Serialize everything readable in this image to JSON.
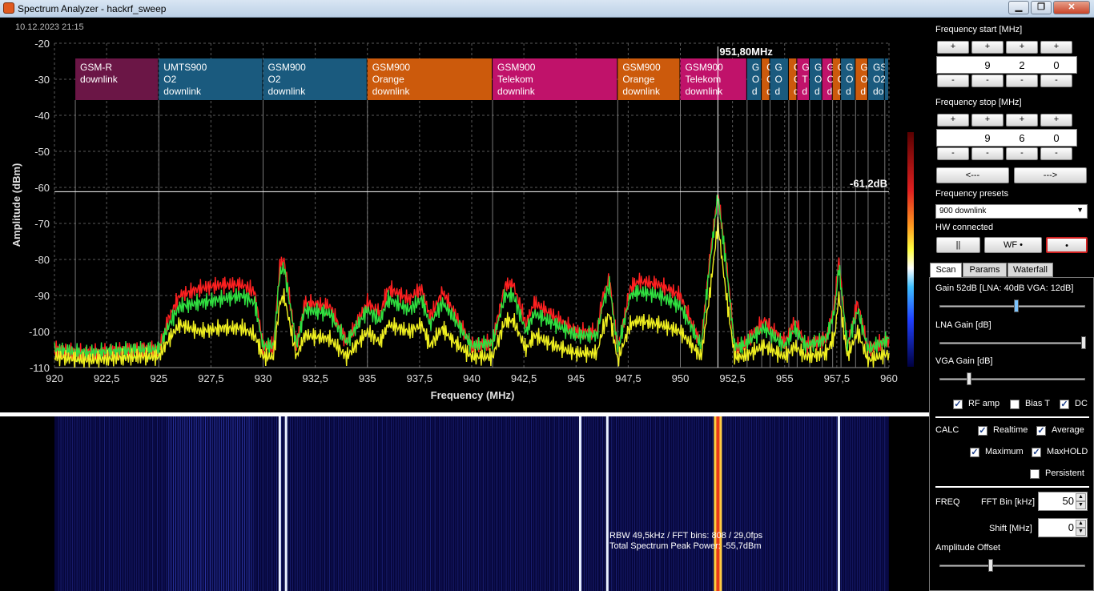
{
  "window": {
    "title": "Spectrum Analyzer - hackrf_sweep",
    "minimize": "▁",
    "maximize": "❐",
    "close": "✕"
  },
  "spectrum": {
    "timestamp": "10.12.2023 21:15",
    "marker_label": "951,80MHz",
    "marker_freq": 951.8,
    "peak_label": "-61,2dB",
    "peak_db": -61.2
  },
  "chart_data": {
    "type": "line",
    "xlabel": "Frequency (MHz)",
    "ylabel": "Amplitude (dBm)",
    "xlim": [
      920,
      960
    ],
    "ylim": [
      -110,
      -20
    ],
    "x_ticks": [
      "920",
      "922,5",
      "925",
      "927,5",
      "930",
      "932,5",
      "935",
      "937,5",
      "940",
      "942,5",
      "945",
      "947,5",
      "950",
      "952,5",
      "955",
      "957,5",
      "960"
    ],
    "y_ticks": [
      "-20",
      "-30",
      "-40",
      "-50",
      "-60",
      "-70",
      "-80",
      "-90",
      "-100",
      "-110"
    ],
    "grid": true,
    "series": [
      {
        "color": "#ff2020",
        "x": [
          920,
          921.5,
          924,
          925,
          925.5,
          926,
          927,
          928,
          929,
          929.6,
          930,
          930.5,
          930.8,
          931,
          931.6,
          932,
          933.2,
          934,
          935,
          935.6,
          936,
          937,
          937.6,
          938,
          938.6,
          939,
          940,
          941,
          941.6,
          942,
          942.6,
          943,
          944,
          945,
          946,
          946.3,
          946.6,
          947,
          947.6,
          948,
          949,
          950,
          951,
          951.4,
          951.8,
          952.2,
          952.6,
          953,
          954,
          955,
          955.5,
          956,
          957,
          957.4,
          957.6,
          958,
          958.5,
          959,
          960
        ],
        "y": [
          -105,
          -106,
          -105,
          -105,
          -96,
          -90,
          -88,
          -87,
          -87,
          -89,
          -104,
          -104,
          -82,
          -80,
          -104,
          -92,
          -93,
          -103,
          -92,
          -95,
          -88,
          -91,
          -88,
          -96,
          -89,
          -93,
          -104,
          -103,
          -87,
          -87,
          -98,
          -92,
          -96,
          -100,
          -100,
          -90,
          -85,
          -105,
          -88,
          -86,
          -87,
          -90,
          -104,
          -80,
          -62,
          -80,
          -104,
          -104,
          -97,
          -103,
          -97,
          -104,
          -102,
          -92,
          -80,
          -104,
          -92,
          -105,
          -102
        ]
      },
      {
        "color": "#30e040",
        "x": [
          920,
          921.5,
          924,
          925,
          925.5,
          926,
          927,
          928,
          929,
          929.6,
          930,
          930.5,
          930.8,
          931,
          931.6,
          932,
          933.2,
          934,
          935,
          935.6,
          936,
          937,
          937.6,
          938,
          938.6,
          939,
          940,
          941,
          941.6,
          942,
          942.6,
          943,
          944,
          945,
          946,
          946.3,
          946.6,
          947,
          947.6,
          948,
          949,
          950,
          951,
          951.4,
          951.8,
          952.2,
          952.6,
          953,
          954,
          955,
          955.5,
          956,
          957,
          957.4,
          957.6,
          958,
          958.5,
          959,
          960
        ],
        "y": [
          -105,
          -106,
          -105,
          -105,
          -98,
          -93,
          -92,
          -91,
          -90,
          -92,
          -104,
          -104,
          -84,
          -82,
          -104,
          -94,
          -95,
          -103,
          -94,
          -97,
          -91,
          -94,
          -91,
          -98,
          -92,
          -95,
          -104,
          -103,
          -90,
          -90,
          -100,
          -95,
          -98,
          -101,
          -101,
          -92,
          -87,
          -105,
          -90,
          -89,
          -90,
          -93,
          -104,
          -82,
          -62,
          -82,
          -104,
          -104,
          -99,
          -104,
          -99,
          -104,
          -102,
          -94,
          -82,
          -104,
          -94,
          -105,
          -102
        ]
      },
      {
        "color": "#f0f020",
        "x": [
          920,
          921.5,
          924,
          925,
          925.5,
          926,
          927,
          928,
          929,
          929.6,
          930,
          930.5,
          930.8,
          931,
          931.6,
          932,
          933.2,
          934,
          935,
          935.6,
          936,
          937,
          937.6,
          938,
          938.6,
          939,
          940,
          941,
          941.6,
          942,
          942.6,
          943,
          944,
          945,
          946,
          946.3,
          946.6,
          947,
          947.6,
          948,
          949,
          950,
          951,
          951.4,
          951.8,
          952.2,
          952.6,
          953,
          954,
          955,
          955.5,
          956,
          957,
          957.4,
          957.6,
          958,
          958.5,
          959,
          960
        ],
        "y": [
          -107,
          -108,
          -107,
          -107,
          -102,
          -98,
          -100,
          -99,
          -99,
          -101,
          -107,
          -107,
          -92,
          -90,
          -107,
          -101,
          -102,
          -107,
          -100,
          -103,
          -98,
          -100,
          -98,
          -104,
          -99,
          -102,
          -107,
          -107,
          -97,
          -97,
          -105,
          -101,
          -104,
          -106,
          -106,
          -99,
          -95,
          -108,
          -98,
          -97,
          -98,
          -100,
          -107,
          -90,
          -70,
          -90,
          -107,
          -107,
          -104,
          -107,
          -104,
          -107,
          -106,
          -101,
          -90,
          -107,
          -100,
          -108,
          -106
        ]
      }
    ],
    "bands": [
      {
        "label": [
          "GSM-R",
          "downlink"
        ],
        "start": 921,
        "end": 925,
        "color": "#6b1646"
      },
      {
        "label": [
          "UMTS900",
          "O2",
          "downlink"
        ],
        "start": 925,
        "end": 930,
        "color": "#1a5a7e"
      },
      {
        "label": [
          "GSM900",
          "O2",
          "downlink"
        ],
        "start": 930,
        "end": 935,
        "color": "#1a5a7e"
      },
      {
        "label": [
          "GSM900",
          "Orange",
          "downlink"
        ],
        "start": 935,
        "end": 941,
        "color": "#cc5a0c"
      },
      {
        "label": [
          "GSM900",
          "Telekom",
          "downlink"
        ],
        "start": 941,
        "end": 947,
        "color": "#c0126a"
      },
      {
        "label": [
          "GSM900",
          "Orange",
          "downlink"
        ],
        "start": 947,
        "end": 950,
        "color": "#cc5a0c"
      },
      {
        "label": [
          "GSM900",
          "Telekom",
          "downlink"
        ],
        "start": 950,
        "end": 953.2,
        "color": "#c0126a"
      },
      {
        "label": [
          "G",
          "O",
          "d"
        ],
        "start": 953.2,
        "end": 953.9,
        "color": "#1a5a7e"
      },
      {
        "label": [
          "G",
          "O",
          "d"
        ],
        "start": 953.9,
        "end": 954.3,
        "color": "#cc5a0c"
      },
      {
        "label": [
          "G",
          "O",
          "d"
        ],
        "start": 954.3,
        "end": 955.2,
        "color": "#1a5a7e"
      },
      {
        "label": [
          "G",
          "O",
          "d"
        ],
        "start": 955.2,
        "end": 955.6,
        "color": "#cc5a0c"
      },
      {
        "label": [
          "G",
          "T",
          "d"
        ],
        "start": 955.6,
        "end": 956.2,
        "color": "#c0126a"
      },
      {
        "label": [
          "G",
          "O",
          "d"
        ],
        "start": 956.2,
        "end": 956.8,
        "color": "#1a5a7e"
      },
      {
        "label": [
          "G",
          "O",
          "d"
        ],
        "start": 956.8,
        "end": 957.3,
        "color": "#c0126a"
      },
      {
        "label": [
          "G",
          "O",
          "d"
        ],
        "start": 957.3,
        "end": 957.7,
        "color": "#cc5a0c"
      },
      {
        "label": [
          "G",
          "O",
          "d"
        ],
        "start": 957.7,
        "end": 958.4,
        "color": "#1a5a7e"
      },
      {
        "label": [
          "G",
          "O",
          "d"
        ],
        "start": 958.4,
        "end": 959,
        "color": "#cc5a0c"
      },
      {
        "label": [
          "GS",
          "O2",
          "do"
        ],
        "start": 959,
        "end": 959.8,
        "color": "#1a5a7e"
      },
      {
        "label": [
          "",
          "",
          ""
        ],
        "start": 959.8,
        "end": 960,
        "color": "#1a5a7e"
      }
    ]
  },
  "waterfall": {
    "info_line1": "RBW 49,5kHz / FFT bins: 808 / 29,0fps",
    "info_line2": "Total Spectrum Peak Power: -55,7dBm",
    "bright_lines_mhz": [
      930.8,
      931.1,
      945.2,
      946.5,
      951.8,
      957.6
    ],
    "hot_line_mhz": 951.8
  },
  "panel": {
    "freq_start_label": "Frequency start [MHz]",
    "freq_start_digits": [
      "9",
      "2",
      "0"
    ],
    "freq_stop_label": "Frequency stop [MHz]",
    "freq_stop_digits": [
      "9",
      "6",
      "0"
    ],
    "plus": "+",
    "minus": "-",
    "prev_btn": "<---",
    "next_btn": "--->",
    "presets_label": "Frequency presets",
    "preset_value": "900 downlink",
    "hw_label": "HW connected",
    "pause_btn": "||",
    "wf_btn": "WF •",
    "rec_btn": "•",
    "tabs": [
      "Scan",
      "Params",
      "Waterfall"
    ],
    "gain_label": "Gain  52dB  [LNA: 40dB  VGA: 12dB]",
    "gain_level": 0.52,
    "lna_label": "LNA Gain [dB]",
    "lna_level": 1.0,
    "vga_label": "VGA Gain [dB]",
    "vga_level": 0.19,
    "rf_amp": "RF amp",
    "bias_t": "Bias T",
    "dc": "DC",
    "calc_label": "CALC",
    "realtime": "Realtime",
    "average": "Average",
    "maximum": "Maximum",
    "maxhold": "MaxHOLD",
    "persistent": "Persistent",
    "freq_label": "FREQ",
    "fft_bin_label": "FFT Bin [kHz]",
    "fft_bin_value": "50",
    "shift_label": "Shift [MHz]",
    "shift_value": "0",
    "amp_offset_label": "Amplitude Offset",
    "amp_offset_level": 0.34
  }
}
